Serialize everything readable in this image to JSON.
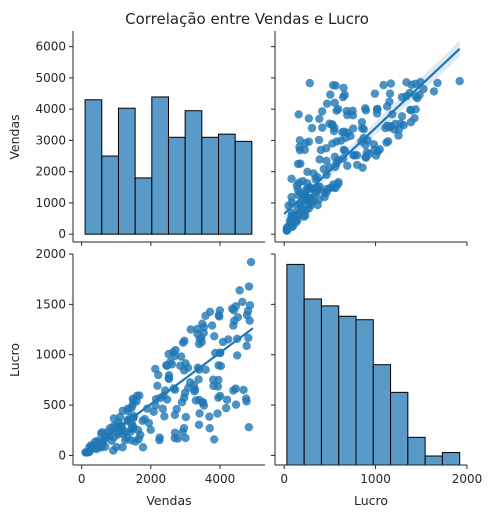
{
  "title": "Correlação entre Vendas e Lucro",
  "colors": {
    "bar_fill": "#5a9ac8",
    "bar_edge": "#000000",
    "point": "#1f77b4",
    "axis": "#262626"
  },
  "variables": [
    "Vendas",
    "Lucro"
  ],
  "chart_data": [
    {
      "panel": "Vendas vs Vendas",
      "type": "bar",
      "subtype": "histogram",
      "variable": "Vendas",
      "ylabel": "Vendas",
      "bin_edges": [
        100,
        582,
        1064,
        1546,
        2028,
        2510,
        2992,
        3474,
        3956,
        4438,
        4920
      ],
      "counts": [
        4300,
        2500,
        4030,
        1800,
        4390,
        3100,
        3950,
        3100,
        3200,
        2970
      ],
      "counts_note": "",
      "yticks": [
        0,
        1000,
        2000,
        3000,
        4000,
        5000,
        6000
      ],
      "ylim": [
        -250,
        6500
      ]
    },
    {
      "panel": "Vendas vs Lucro",
      "type": "scatter",
      "x_variable": "Lucro",
      "y_variable": "Vendas",
      "n_points": 200,
      "x_range": [
        30,
        1920
      ],
      "y_range": [
        100,
        4950
      ],
      "regression": {
        "slope": 2.75,
        "intercept": 650
      },
      "xlim": [
        -100,
        2000
      ],
      "ylim": [
        -250,
        6500
      ]
    },
    {
      "panel": "Lucro vs Vendas",
      "type": "scatter",
      "x_variable": "Vendas",
      "y_variable": "Lucro",
      "xlabel": "Vendas",
      "ylabel": "Lucro",
      "n_points": 200,
      "x_range": [
        100,
        4950
      ],
      "y_range": [
        30,
        1920
      ],
      "regression": {
        "slope": 0.255,
        "intercept": 0
      },
      "xticks": [
        0,
        2000,
        4000
      ],
      "yticks": [
        0,
        500,
        1000,
        1500,
        2000
      ],
      "xlim": [
        -250,
        5300
      ],
      "ylim": [
        -95,
        2000
      ]
    },
    {
      "panel": "Lucro vs Lucro",
      "type": "bar",
      "subtype": "histogram",
      "variable": "Lucro",
      "xlabel": "Lucro",
      "bin_edges": [
        30,
        219,
        408,
        597,
        786,
        975,
        1164,
        1353,
        1542,
        1731,
        1920
      ],
      "counts": [
        29,
        24,
        23,
        21.5,
        21,
        14.5,
        10.5,
        4,
        1.3,
        1.8
      ],
      "xticks": [
        0,
        1000,
        2000
      ],
      "xlim": [
        -100,
        2000
      ]
    }
  ]
}
